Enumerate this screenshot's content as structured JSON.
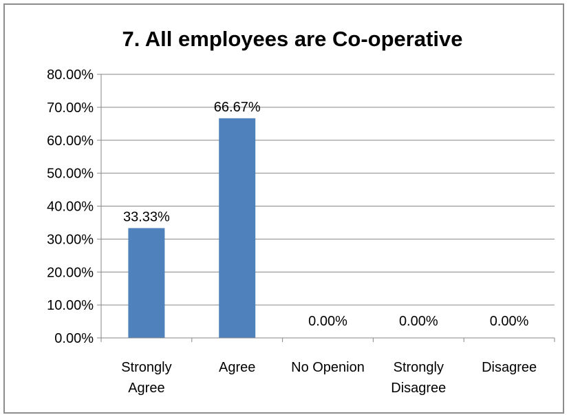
{
  "chart_data": {
    "type": "bar",
    "title": "7. All employees are Co-operative",
    "categories": [
      [
        "Strongly",
        "Agree"
      ],
      [
        "Agree"
      ],
      [
        "No Openion"
      ],
      [
        "Strongly",
        "Disagree"
      ],
      [
        "Disagree"
      ]
    ],
    "values": [
      33.33,
      66.67,
      0,
      0,
      0
    ],
    "value_labels": [
      "33.33%",
      "66.67%",
      "0.00%",
      "0.00%",
      "0.00%"
    ],
    "y_ticks": [
      "0.00%",
      "10.00%",
      "20.00%",
      "30.00%",
      "40.00%",
      "50.00%",
      "60.00%",
      "70.00%",
      "80.00%"
    ],
    "ylim": [
      0,
      80
    ],
    "grid": true,
    "legend": "none",
    "bar_color": "#4f81bd",
    "grid_color": "#868686"
  }
}
